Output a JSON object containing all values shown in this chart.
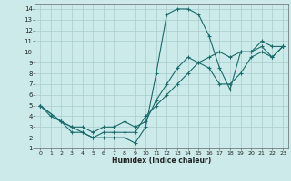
{
  "xlabel": "Humidex (Indice chaleur)",
  "background_color": "#cceaea",
  "grid_color": "#aacccc",
  "line_color": "#1a6b6b",
  "xlim": [
    -0.5,
    23.5
  ],
  "ylim": [
    1,
    14.5
  ],
  "xticks": [
    0,
    1,
    2,
    3,
    4,
    5,
    6,
    7,
    8,
    9,
    10,
    11,
    12,
    13,
    14,
    15,
    16,
    17,
    18,
    19,
    20,
    21,
    22,
    23
  ],
  "yticks": [
    1,
    2,
    3,
    4,
    5,
    6,
    7,
    8,
    9,
    10,
    11,
    12,
    13,
    14
  ],
  "series1_x": [
    0,
    1,
    2,
    3,
    4,
    5,
    6,
    7,
    8,
    9,
    10,
    11,
    12,
    13,
    14,
    15,
    16,
    17,
    18,
    19,
    20,
    21,
    22,
    23
  ],
  "series1_y": [
    5,
    4,
    3.5,
    3,
    2.5,
    2,
    2,
    2,
    2,
    1.5,
    3,
    8,
    13.5,
    14,
    14,
    13.5,
    11.5,
    8.5,
    6.5,
    10,
    10,
    11,
    10.5,
    10.5
  ],
  "series2_x": [
    0,
    2,
    3,
    4,
    5,
    6,
    7,
    8,
    9,
    10,
    11,
    12,
    13,
    14,
    15,
    16,
    17,
    18,
    19,
    20,
    21,
    22,
    23
  ],
  "series2_y": [
    5,
    3.5,
    3,
    3,
    2.5,
    3,
    3,
    3.5,
    3,
    3.5,
    5.5,
    7,
    8.5,
    9.5,
    9,
    8.5,
    7,
    7,
    8,
    9.5,
    10,
    9.5,
    10.5
  ],
  "series3_x": [
    0,
    2,
    3,
    4,
    5,
    6,
    7,
    8,
    9,
    10,
    11,
    12,
    13,
    14,
    15,
    16,
    17,
    18,
    19,
    20,
    21,
    22,
    23
  ],
  "series3_y": [
    5,
    3.5,
    2.5,
    2.5,
    2,
    2.5,
    2.5,
    2.5,
    2.5,
    4,
    5,
    6,
    7,
    8,
    9,
    9.5,
    10,
    9.5,
    10,
    10,
    10.5,
    9.5,
    10.5
  ]
}
